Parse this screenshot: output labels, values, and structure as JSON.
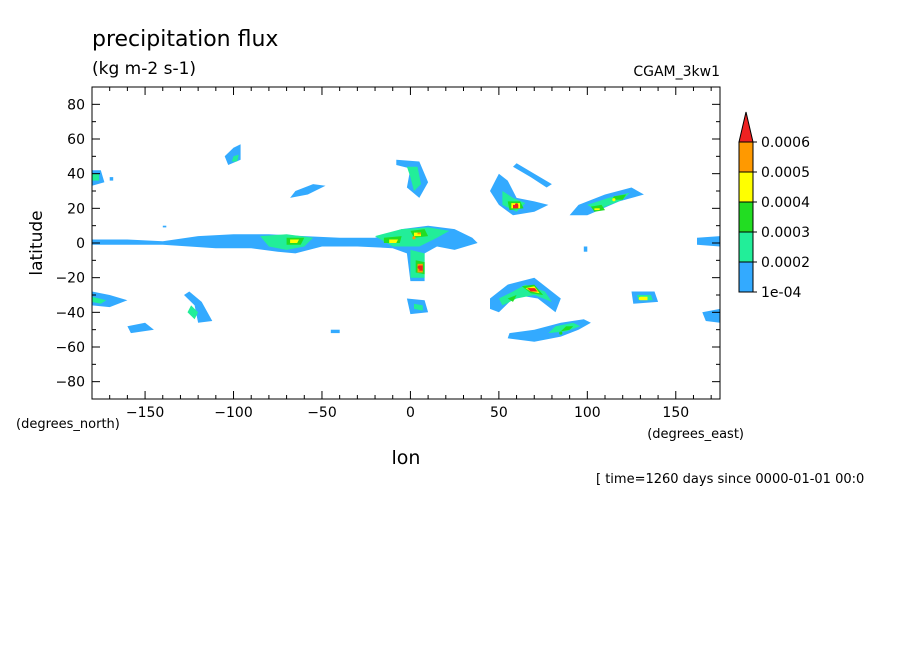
{
  "chart_data": {
    "type": "heatmap",
    "title": "precipitation flux",
    "subtitle": "(kg m-2 s-1)",
    "dataset_label": "CGAM_3kw1",
    "xlabel": "lon",
    "ylabel": "latitude",
    "x_units": "(degrees_east)",
    "y_units": "(degrees_north)",
    "time_label": "[ time=1260 days since 0000-01-01 00:0",
    "xlim": [
      -180,
      175
    ],
    "ylim": [
      -90,
      90
    ],
    "x_ticks": [
      -150,
      -100,
      -50,
      0,
      50,
      100,
      150
    ],
    "y_ticks": [
      80,
      60,
      40,
      20,
      0,
      -20,
      -40,
      -60,
      -80
    ],
    "colorbar": {
      "levels": [
        "1e-04",
        "0.0002",
        "0.0003",
        "0.0004",
        "0.0005",
        "0.0006"
      ],
      "colors": [
        "#33aaff",
        "#22ee99",
        "#22dd22",
        "#ffff00",
        "#ff9900",
        "#ee2222"
      ]
    },
    "features": [
      {
        "lon": -75,
        "lat": 3,
        "level": 1
      },
      {
        "lon": -65,
        "lat": 1,
        "level": 3
      },
      {
        "lon": -10,
        "lat": 1,
        "level": 3
      },
      {
        "lon": 2,
        "lat": 3,
        "level": 4
      },
      {
        "lon": 5,
        "lat": -14,
        "level": 5
      },
      {
        "lon": 60,
        "lat": 22,
        "level": 5
      },
      {
        "lon": 70,
        "lat": -27,
        "level": 5
      },
      {
        "lon": 115,
        "lat": 25,
        "level": 3
      },
      {
        "lon": 130,
        "lat": -32,
        "level": 3
      },
      {
        "lon": 85,
        "lat": -52,
        "level": 2
      }
    ]
  }
}
